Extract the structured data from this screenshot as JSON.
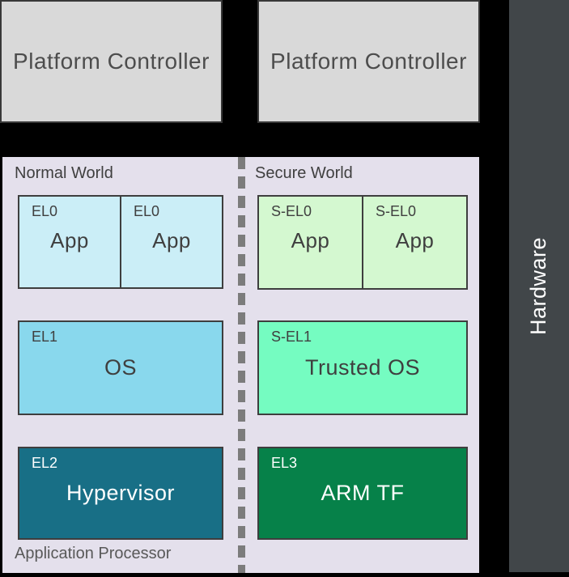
{
  "platform_controllers": [
    {
      "label": "Platform Controller"
    },
    {
      "label": "Platform Controller"
    }
  ],
  "hardware": {
    "label": "Hardware",
    "color": "#414649"
  },
  "panel": {
    "color": "#e4e0ec",
    "footer_label": "Application Processor"
  },
  "controller_color": "#d9d9d9",
  "divider_color": "#7c7c7c",
  "normal_world": {
    "label": "Normal World",
    "apps": [
      {
        "level": "EL0",
        "name": "App"
      },
      {
        "level": "EL0",
        "name": "App"
      }
    ],
    "apps_color": "#cbeef7",
    "os": {
      "level": "EL1",
      "name": "OS",
      "color": "#89d8ed"
    },
    "hypervisor": {
      "level": "EL2",
      "name": "Hypervisor",
      "color": "#186f86"
    }
  },
  "secure_world": {
    "label": "Secure World",
    "apps": [
      {
        "level": "S-EL0",
        "name": "App"
      },
      {
        "level": "S-EL0",
        "name": "App"
      }
    ],
    "apps_color": "#d4f8d0",
    "os": {
      "level": "S-EL1",
      "name": "Trusted OS",
      "color": "#75fcc1"
    },
    "firmware": {
      "level": "EL3",
      "name": "ARM TF",
      "color": "#068149"
    }
  }
}
